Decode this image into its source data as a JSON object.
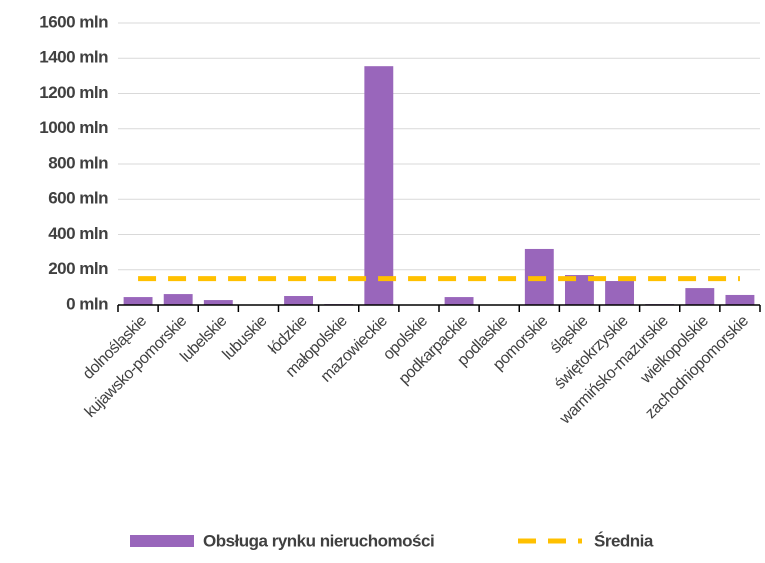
{
  "chart_data": {
    "type": "bar",
    "categories": [
      "dolnośląskie",
      "kujawsko-pomorskie",
      "lubelskie",
      "lubuskie",
      "łódzkie",
      "małopolskie",
      "mazowieckie",
      "opolskie",
      "podkarpackie",
      "podlaskie",
      "pomorskie",
      "śląskie",
      "świętokrzyskie",
      "warmińsko-mazurskie",
      "wielkopolskie",
      "zachodniopomorskie"
    ],
    "series": [
      {
        "name": "Obsługa rynku nieruchomości",
        "color": "#9966bb",
        "values": [
          45,
          62,
          28,
          0,
          51,
          5,
          1355,
          0,
          45,
          0,
          318,
          170,
          136,
          5,
          96,
          57
        ]
      },
      {
        "name": "Średnia",
        "color": "#ffc000",
        "type": "line",
        "values": [
          150,
          150,
          150,
          150,
          150,
          150,
          150,
          150,
          150,
          150,
          150,
          150,
          150,
          150,
          150,
          150
        ]
      }
    ],
    "ylim": [
      0,
      1600
    ],
    "yticks": [
      {
        "value": 0,
        "label": "0 mln"
      },
      {
        "value": 200,
        "label": "200 mln"
      },
      {
        "value": 400,
        "label": "400 mln"
      },
      {
        "value": 600,
        "label": "600 mln"
      },
      {
        "value": 800,
        "label": "800 mln"
      },
      {
        "value": 1000,
        "label": "1000 mln"
      },
      {
        "value": 1200,
        "label": "1200 mln"
      },
      {
        "value": 1400,
        "label": "1400 mln"
      },
      {
        "value": 1600,
        "label": "1600 mln"
      }
    ],
    "grid": true,
    "legend": "bottom"
  }
}
